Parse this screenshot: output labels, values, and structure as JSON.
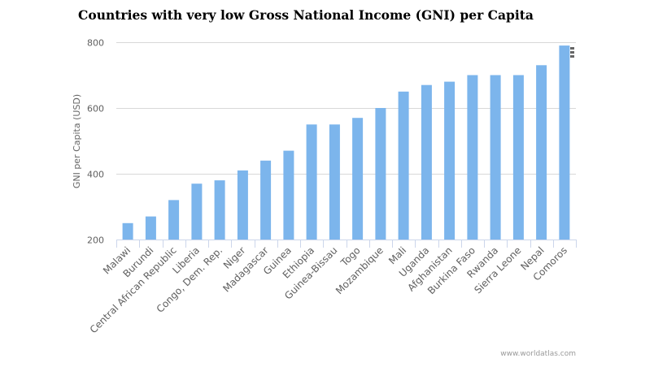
{
  "chart_data": {
    "type": "bar",
    "title": "Countries with very low Gross National Income (GNI) per Capita",
    "xlabel": "",
    "ylabel": "GNI per Capita (USD)",
    "ylim": [
      200,
      800
    ],
    "yticks": [
      200,
      400,
      600,
      800
    ],
    "grid": true,
    "legend": "none",
    "categories": [
      "Malawi",
      "Burundi",
      "Central African Republic",
      "Liberia",
      "Congo, Dem. Rep.",
      "Niger",
      "Madagascar",
      "Guinea",
      "Ethiopia",
      "Guinea-Bissau",
      "Togo",
      "Mozambique",
      "Mali",
      "Uganda",
      "Afghanistan",
      "Burkina Faso",
      "Rwanda",
      "Sierra Leone",
      "Nepal",
      "Comoros"
    ],
    "series": [
      {
        "name": "GNI per Capita (USD)",
        "color": "#7cb5ec",
        "values": [
          250,
          270,
          320,
          370,
          380,
          410,
          440,
          470,
          550,
          550,
          570,
          600,
          650,
          670,
          680,
          700,
          700,
          700,
          730,
          790
        ]
      }
    ]
  },
  "credit": "www.worldatlas.com",
  "menu_icon": "hamburger-menu-icon",
  "colors": {
    "bar": "#7cb5ec",
    "grid": "#d8d8d8",
    "axis": "#ccd6eb",
    "text": "#606060"
  }
}
